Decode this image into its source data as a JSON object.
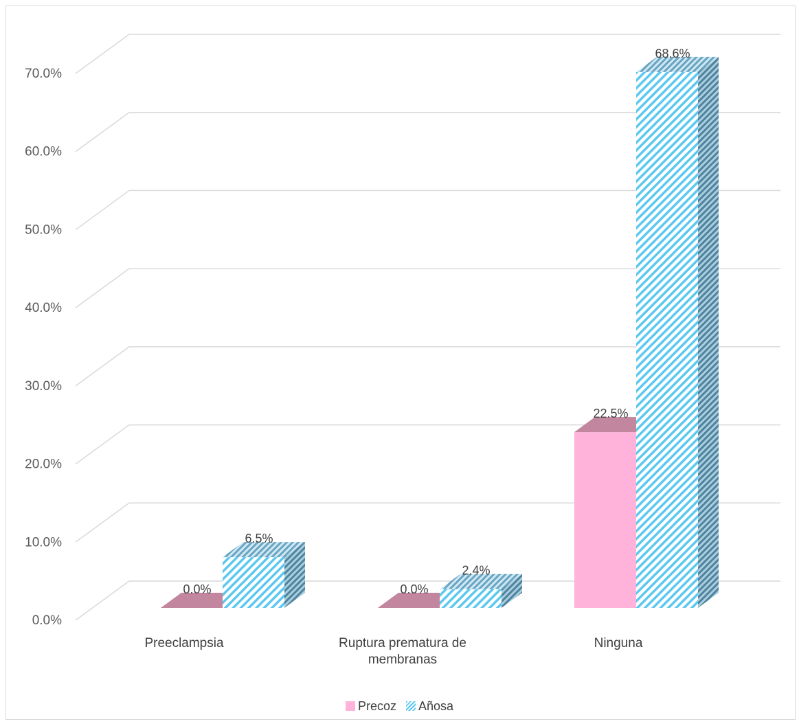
{
  "chart_data": {
    "type": "bar",
    "categories": [
      "Preeclampsia",
      "Ruptura prematura de membranas",
      "Ninguna"
    ],
    "series": [
      {
        "name": "Precoz",
        "values": [
          0.0,
          0.0,
          22.5
        ],
        "labels": [
          "0.0%",
          "0.0%",
          "22.5%"
        ],
        "color": "#ffb3da",
        "top_color": "#c2869f"
      },
      {
        "name": "Añosa",
        "values": [
          6.5,
          2.4,
          68.6
        ],
        "labels": [
          "6.5%",
          "2.4%",
          "68.6%"
        ],
        "color": "#5bc8ef",
        "side_color": "#5a8ea6"
      }
    ],
    "y_ticks": [
      "0.0%",
      "10.0%",
      "20.0%",
      "30.0%",
      "40.0%",
      "50.0%",
      "60.0%",
      "70.0%"
    ],
    "ylim": [
      0,
      70
    ],
    "grid": true,
    "legend": "bottom",
    "style": "3d-column"
  },
  "category_label_lines": [
    [
      "Preeclampsia"
    ],
    [
      "Ruptura prematura de",
      "membranas"
    ],
    [
      "Ninguna"
    ]
  ],
  "legend": {
    "precoz_label": "Precoz",
    "anosa_label": "Añosa"
  }
}
